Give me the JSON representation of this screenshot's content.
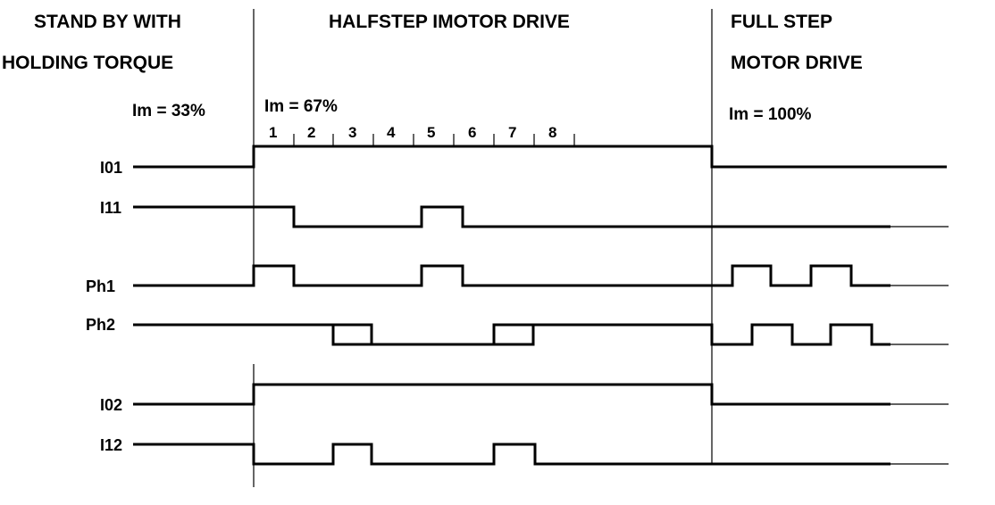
{
  "headers": {
    "standby_line1": "STAND BY WITH",
    "standby_line2": "HOLDING TORQUE",
    "halfstep": "HALFSTEP IMOTOR DRIVE",
    "fullstep_line1": "FULL STEP",
    "fullstep_line2": "MOTOR DRIVE"
  },
  "currents": {
    "standby": "Im = 33%",
    "halfstep": "Im = 67%",
    "fullstep": "Im = 100%"
  },
  "step_numbers": [
    "1",
    "2",
    "3",
    "4",
    "5",
    "6",
    "7",
    "8"
  ],
  "signals": {
    "i01": "I01",
    "i11": "I11",
    "ph1": "Ph1",
    "ph2": "Ph2",
    "i02": "I02",
    "i12": "I12"
  },
  "colors": {
    "line": "#000000",
    "background": "#ffffff"
  }
}
